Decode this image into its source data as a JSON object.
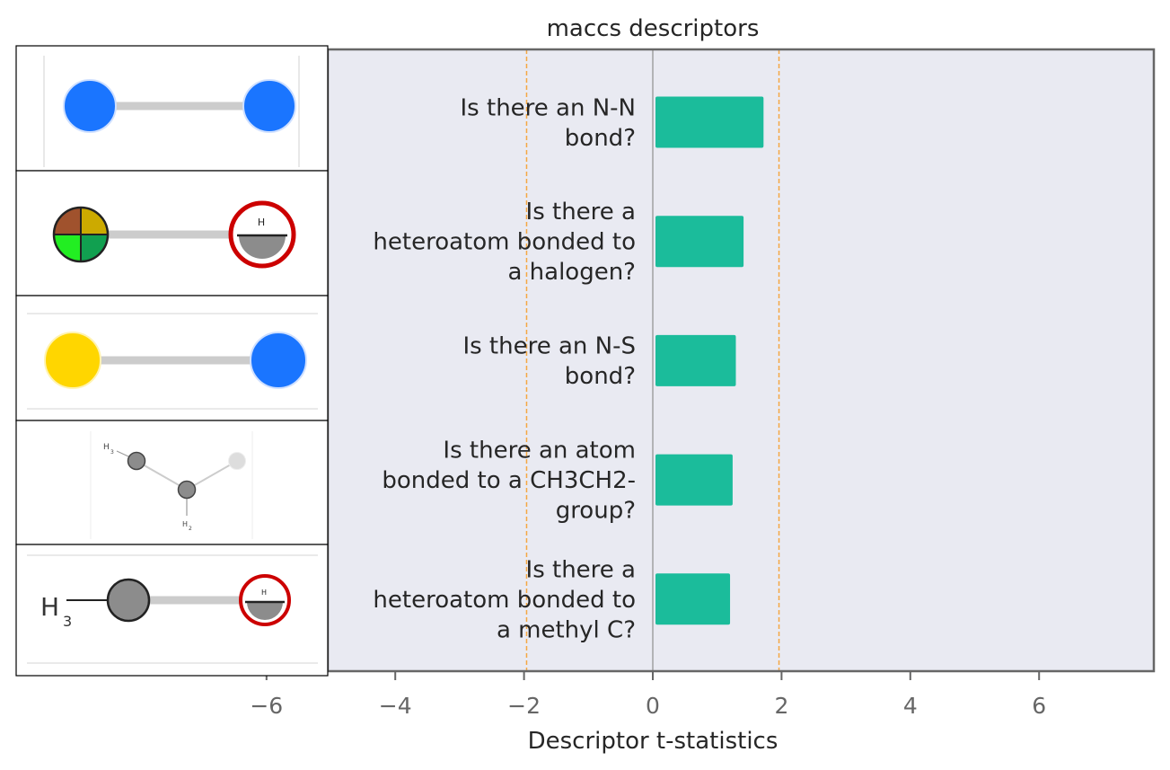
{
  "chart_data": {
    "type": "bar",
    "orientation": "horizontal",
    "title": "maccs descriptors",
    "xlabel": "Descriptor t-statistics",
    "xlim": [
      -6.0,
      7.8
    ],
    "xticks": [
      -6,
      -4,
      -2,
      0,
      2,
      4,
      6
    ],
    "xtick_labels": [
      "−6",
      "−4",
      "−2",
      "0",
      "2",
      "4",
      "6"
    ],
    "categories": [
      "Is there an N-N bond?",
      "Is there a heteroatom bonded to a halogen?",
      "Is there an N-S bond?",
      "Is there an atom bonded to a CH3CH2- group?",
      "Is there a heteroatom bonded to a methyl C?"
    ],
    "category_label_lines": [
      [
        "Is there an N-N",
        "bond?"
      ],
      [
        "Is there a",
        "heteroatom bonded to",
        "a halogen?"
      ],
      [
        "Is there an N-S",
        "bond?"
      ],
      [
        "Is there an atom",
        "bonded to a CH3CH2-",
        "group?"
      ],
      [
        "Is there a",
        "heteroatom bonded to",
        "a methyl C?"
      ]
    ],
    "values": [
      1.72,
      1.41,
      1.29,
      1.24,
      1.2
    ],
    "reference_lines": [
      -1.96,
      1.96
    ],
    "grid": false,
    "legend": "none",
    "substructure_images": [
      "N-N fragment",
      "heteroatom-halogen fragment",
      "N-S fragment",
      "ethyl fragment",
      "methyl fragment"
    ],
    "colors": {
      "bar": "#1bbc9b",
      "plot_background": "#e9eaf2",
      "reference_line": "#f5a742",
      "zero_line": "#8f8f8f",
      "frame": "#666666",
      "tick_text": "#666666",
      "label_text": "#262626",
      "atom_N": "#1a75ff",
      "atom_S": "#ffd600",
      "atom_C": "#8c8c8c",
      "halogen_ring": "#cc0000",
      "bond": "#cccccc"
    }
  }
}
